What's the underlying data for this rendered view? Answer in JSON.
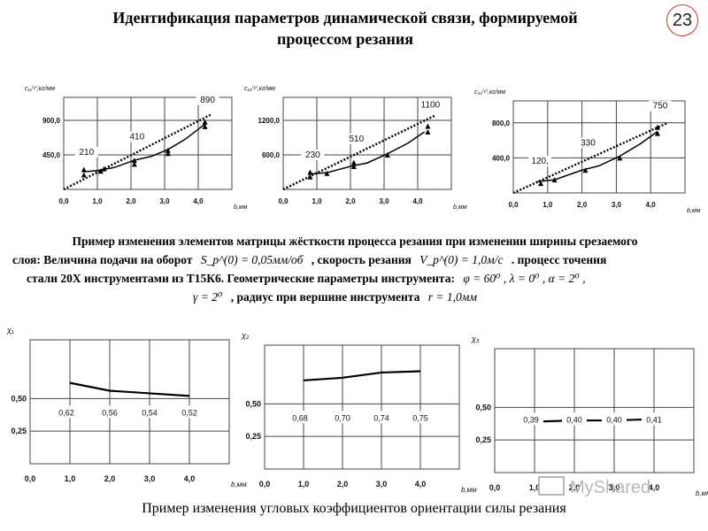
{
  "page": {
    "title_line1": "Идентификация параметров динамической связи, формируемой",
    "title_line2": "процессом резания",
    "slide_number": "23",
    "description": {
      "line1": "Пример изменения элементов матрицы жёсткости процесса резания при изменении ширины срезаемого",
      "line2_a": "слоя: Величина подачи на оборот",
      "line2_f1": "S_p^(0) = 0,05мм/об",
      "line2_b": ", скорость резания",
      "line2_f2": "V_p^(0) = 1,0м/с",
      "line2_c": ". процесс точения",
      "line3_a": "стали 20Х инструментами из Т15К6. Геометрические параметры инструмента:",
      "line3_f": "φ = 60⁰ ,  λ = 0⁰ ,  α = 2⁰ ,",
      "line4_f1": "γ = 2⁰",
      "line4_a": ", радиус при вершине инструмента",
      "line4_f2": "r = 1,0мм"
    },
    "caption": "Пример изменения угловых коэффициентов ориентации силы резания",
    "watermark": "MyShared"
  },
  "chart_data": [
    {
      "type": "scatter",
      "ylabel": "c₁₁⁽ʸ⁾,кг/мм",
      "xlabel": "b,мм",
      "xticks": [
        "0,0",
        "1,0",
        "2,0",
        "3,0",
        "4,0"
      ],
      "xlim": [
        0,
        5
      ],
      "yticks": [
        {
          "v": 450,
          "label": "450,0"
        },
        {
          "v": 900,
          "label": "900,0"
        }
      ],
      "ylim": [
        0,
        1200
      ],
      "fit_line": {
        "x": [
          0,
          4.4
        ],
        "y": [
          0,
          980
        ]
      },
      "trend_line": {
        "x": [
          0.6,
          1.0,
          1.5,
          2.1,
          2.6,
          3.1,
          3.6,
          4.2
        ],
        "y": [
          230,
          245,
          285,
          380,
          430,
          520,
          650,
          850
        ]
      },
      "annotations": [
        {
          "x": 0.6,
          "y": 210,
          "label": "210"
        },
        {
          "x": 2.1,
          "y": 410,
          "label": "410"
        },
        {
          "x": 4.2,
          "y": 890,
          "label": "890"
        }
      ],
      "points": [
        {
          "x": 0.6,
          "y": 190
        },
        {
          "x": 0.6,
          "y": 260
        },
        {
          "x": 1.1,
          "y": 240
        },
        {
          "x": 1.2,
          "y": 270
        },
        {
          "x": 2.1,
          "y": 330
        },
        {
          "x": 2.1,
          "y": 380
        },
        {
          "x": 3.1,
          "y": 470
        },
        {
          "x": 3.1,
          "y": 510
        },
        {
          "x": 4.2,
          "y": 820
        },
        {
          "x": 4.2,
          "y": 880
        }
      ]
    },
    {
      "type": "scatter",
      "ylabel": "c₂₂⁽ʸ⁾,кг/мм",
      "xlabel": "b,мм",
      "xticks": [
        "0,0",
        "1,0",
        "2,0",
        "3,0",
        "4,0"
      ],
      "xlim": [
        0,
        5
      ],
      "yticks": [
        {
          "v": 600,
          "label": "600,0"
        },
        {
          "v": 1200,
          "label": "1200,0"
        }
      ],
      "ylim": [
        0,
        1600
      ],
      "fit_line": {
        "x": [
          0,
          4.5
        ],
        "y": [
          0,
          1280
        ]
      },
      "trend_line": {
        "x": [
          0.8,
          1.3,
          2.0,
          2.5,
          3.1,
          3.7,
          4.2
        ],
        "y": [
          270,
          290,
          400,
          460,
          620,
          800,
          1000
        ]
      },
      "annotations": [
        {
          "x": 0.8,
          "y": 230,
          "label": "230"
        },
        {
          "x": 2.1,
          "y": 510,
          "label": "510"
        },
        {
          "x": 4.3,
          "y": 1100,
          "label": "1100"
        }
      ],
      "points": [
        {
          "x": 0.8,
          "y": 220
        },
        {
          "x": 0.8,
          "y": 300
        },
        {
          "x": 1.3,
          "y": 280
        },
        {
          "x": 2.1,
          "y": 400
        },
        {
          "x": 2.1,
          "y": 470
        },
        {
          "x": 3.1,
          "y": 600
        },
        {
          "x": 4.3,
          "y": 1000
        },
        {
          "x": 4.3,
          "y": 1100
        }
      ]
    },
    {
      "type": "scatter",
      "ylabel": "c₃₃⁽ʸ⁾,кг/мм",
      "xlabel": "b,мм",
      "xticks": [
        "0,0",
        "1,0",
        "2,0",
        "3,0",
        "4,0"
      ],
      "xlim": [
        0,
        5
      ],
      "yticks": [
        {
          "v": 400,
          "label": "400,0"
        },
        {
          "v": 800,
          "label": "800,0"
        }
      ],
      "ylim": [
        0,
        1050
      ],
      "fit_line": {
        "x": [
          0,
          4.5
        ],
        "y": [
          0,
          800
        ]
      },
      "trend_line": {
        "x": [
          0.7,
          1.2,
          2.0,
          2.5,
          3.1,
          3.7,
          4.2
        ],
        "y": [
          130,
          150,
          260,
          310,
          420,
          560,
          700
        ]
      },
      "annotations": [
        {
          "x": 0.7,
          "y": 120,
          "label": "120,"
        },
        {
          "x": 2.1,
          "y": 330,
          "label": "330"
        },
        {
          "x": 4.2,
          "y": 750,
          "label": "750"
        }
      ],
      "points": [
        {
          "x": 0.8,
          "y": 110
        },
        {
          "x": 1.2,
          "y": 150
        },
        {
          "x": 2.1,
          "y": 260
        },
        {
          "x": 3.1,
          "y": 400
        },
        {
          "x": 4.2,
          "y": 680
        },
        {
          "x": 4.2,
          "y": 750
        }
      ]
    },
    {
      "type": "line",
      "ylabel": "χ₁",
      "xlabel": "b,мм",
      "xticks": [
        "0,0",
        "1,0",
        "2,0",
        "3,0",
        "4,0"
      ],
      "xlim": [
        0,
        5
      ],
      "yticks": [
        {
          "v": 0.25,
          "label": "0,25"
        },
        {
          "v": 0.5,
          "label": "0,50"
        }
      ],
      "ylim": [
        0,
        0.95
      ],
      "series": {
        "x": [
          1.0,
          2.0,
          3.0,
          4.0
        ],
        "y": [
          0.62,
          0.56,
          0.54,
          0.52
        ]
      },
      "labels": [
        "0,62",
        "0,56",
        "0,54",
        "0,52"
      ]
    },
    {
      "type": "line",
      "ylabel": "χ₂",
      "xlabel": "b,мм",
      "xticks": [
        "0,0",
        "1,0",
        "2,0",
        "3,0",
        "4,0"
      ],
      "xlim": [
        0,
        5
      ],
      "yticks": [
        {
          "v": 0.25,
          "label": "0,25"
        },
        {
          "v": 0.5,
          "label": "0,50"
        }
      ],
      "ylim": [
        0,
        0.95
      ],
      "series": {
        "x": [
          1.0,
          2.0,
          3.0,
          4.0
        ],
        "y": [
          0.68,
          0.7,
          0.74,
          0.75
        ]
      },
      "labels": [
        "0,68",
        "0,70",
        "0,74",
        "0,75"
      ]
    },
    {
      "type": "line",
      "ylabel": "χ₃",
      "xlabel": "b,мм",
      "xticks": [
        "0,0",
        "1,0",
        "2,0",
        "3,0",
        "4,0"
      ],
      "xlim": [
        0,
        5
      ],
      "yticks": [
        {
          "v": 0.25,
          "label": "0,25"
        },
        {
          "v": 0.5,
          "label": "0,50"
        }
      ],
      "ylim": [
        0,
        0.95
      ],
      "series": {
        "x": [
          1.0,
          2.0,
          3.0,
          4.0
        ],
        "y": [
          0.39,
          0.4,
          0.4,
          0.41
        ]
      },
      "labels": [
        "0,39",
        "0,40",
        "0,40",
        "0,41"
      ]
    }
  ]
}
